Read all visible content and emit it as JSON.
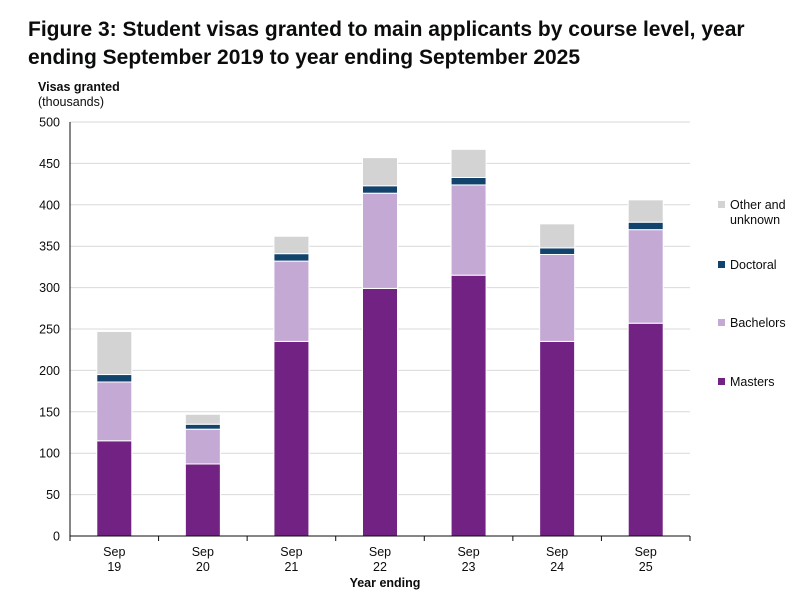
{
  "chart_data": {
    "type": "bar",
    "stacked": true,
    "title": "Figure 3: Student visas granted to main applicants by course level, year ending September 2019 to year ending September 2025",
    "ylabel_line1": "Visas granted",
    "ylabel_line2": "(thousands)",
    "xlabel": "Year ending",
    "categories": [
      [
        "Sep",
        "19"
      ],
      [
        "Sep",
        "20"
      ],
      [
        "Sep",
        "21"
      ],
      [
        "Sep",
        "22"
      ],
      [
        "Sep",
        "23"
      ],
      [
        "Sep",
        "24"
      ],
      [
        "Sep",
        "25"
      ]
    ],
    "ylim": [
      0,
      500
    ],
    "yticks": [
      0,
      50,
      100,
      150,
      200,
      250,
      300,
      350,
      400,
      450,
      500
    ],
    "grid": true,
    "legend_position": "right",
    "series": [
      {
        "name": "Masters",
        "legend": [
          "Masters"
        ],
        "color": "#722282",
        "values": [
          115,
          87,
          235,
          299,
          315,
          235,
          257
        ]
      },
      {
        "name": "Bachelors",
        "legend": [
          "Bachelors"
        ],
        "color": "#c5a9d5",
        "values": [
          71,
          42,
          97,
          115,
          109,
          105,
          113
        ]
      },
      {
        "name": "Doctoral",
        "legend": [
          "Doctoral"
        ],
        "color": "#12436d",
        "values": [
          9,
          6,
          9,
          9,
          9,
          8,
          9
        ]
      },
      {
        "name": "Other and unknown",
        "legend": [
          "Other and",
          "unknown"
        ],
        "color": "#d3d3d3",
        "values": [
          52,
          12,
          21,
          34,
          34,
          29,
          27
        ]
      }
    ]
  }
}
